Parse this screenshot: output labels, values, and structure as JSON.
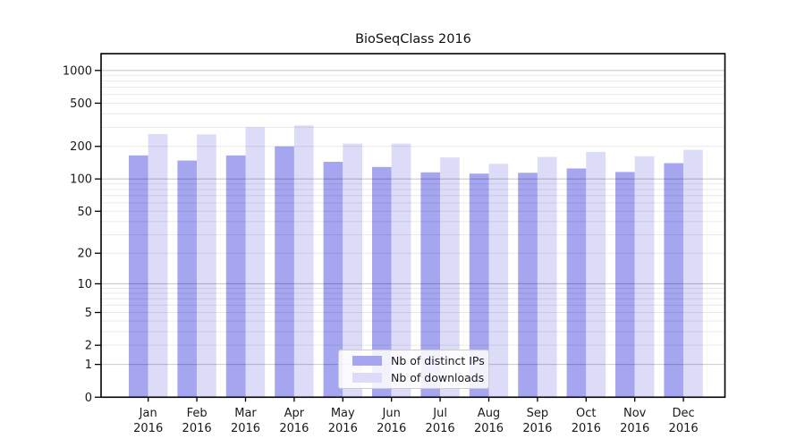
{
  "figure": {
    "title": "BioSeqClass 2016"
  },
  "chart_data": {
    "type": "bar",
    "title": "BioSeqClass 2016",
    "categories": [
      "Jan",
      "Feb",
      "Mar",
      "Apr",
      "May",
      "Jun",
      "Jul",
      "Aug",
      "Sep",
      "Oct",
      "Nov",
      "Dec"
    ],
    "year_label": "2016",
    "series": [
      {
        "name": "Nb of distinct IPs",
        "color": "#a5a5f0",
        "values": [
          165,
          148,
          165,
          200,
          144,
          129,
          115,
          112,
          114,
          125,
          116,
          140
        ]
      },
      {
        "name": "Nb of downloads",
        "color": "#dcdcf8",
        "values": [
          260,
          258,
          300,
          312,
          212,
          212,
          158,
          138,
          160,
          178,
          162,
          186
        ]
      }
    ],
    "xlabel": "",
    "ylabel": "",
    "yscale": "log1p",
    "y_ticks": [
      0,
      1,
      2,
      5,
      10,
      20,
      50,
      100,
      200,
      500,
      1000
    ],
    "ylim": [
      0,
      1450
    ],
    "grid": "on",
    "legend_position": "inside-bottom-center",
    "colors": {
      "axis": "#000000",
      "grid_major": "#c8c8c8",
      "grid_minor": "#e9e9e9",
      "text": "#1a1a1a"
    }
  }
}
